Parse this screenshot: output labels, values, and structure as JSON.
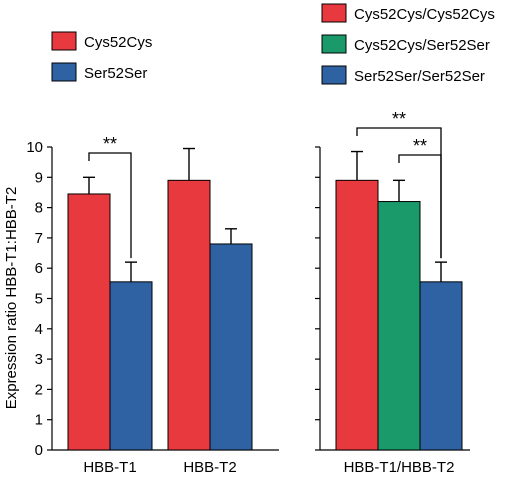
{
  "chart_data": {
    "type": "bar",
    "ylabel": "Expression ratio HBB-T1:HBB-T2",
    "ylim": [
      0,
      10
    ],
    "yticks": [
      "0",
      "1",
      "2",
      "3",
      "4",
      "5",
      "6",
      "7",
      "8",
      "9",
      "10"
    ],
    "panels": [
      {
        "legend": [
          {
            "name": "Cys52Cys",
            "color": "#e8393e"
          },
          {
            "name": "Ser52Ser",
            "color": "#2f62a3"
          }
        ],
        "groups": [
          {
            "label": "HBB-T1",
            "bars": [
              {
                "series": "Cys52Cys",
                "value": 8.45,
                "error": 0.55,
                "color": "#e8393e"
              },
              {
                "series": "Ser52Ser",
                "value": 5.55,
                "error": 0.65,
                "color": "#2f62a3"
              }
            ]
          },
          {
            "label": "HBB-T2",
            "bars": [
              {
                "series": "Cys52Cys",
                "value": 8.9,
                "error": 1.05,
                "color": "#e8393e"
              },
              {
                "series": "Ser52Ser",
                "value": 6.8,
                "error": 0.5,
                "color": "#2f62a3"
              }
            ]
          }
        ],
        "significance": [
          {
            "label": "**",
            "group": 0,
            "from": 0,
            "to": 1
          }
        ]
      },
      {
        "legend": [
          {
            "name": "Cys52Cys/Cys52Cys",
            "color": "#e8393e"
          },
          {
            "name": "Cys52Cys/Ser52Ser",
            "color": "#1a9a6b"
          },
          {
            "name": "Ser52Ser/Ser52Ser",
            "color": "#2f62a3"
          }
        ],
        "groups": [
          {
            "label": "HBB-T1/HBB-T2",
            "bars": [
              {
                "series": "Cys52Cys/Cys52Cys",
                "value": 8.9,
                "error": 0.95,
                "color": "#e8393e"
              },
              {
                "series": "Cys52Cys/Ser52Ser",
                "value": 8.2,
                "error": 0.7,
                "color": "#1a9a6b"
              },
              {
                "series": "Ser52Ser/Ser52Ser",
                "value": 5.55,
                "error": 0.65,
                "color": "#2f62a3"
              }
            ]
          }
        ],
        "significance": [
          {
            "label": "**",
            "group": 0,
            "from": 0,
            "to": 2
          },
          {
            "label": "**",
            "group": 0,
            "from": 1,
            "to": 2
          }
        ]
      }
    ]
  }
}
